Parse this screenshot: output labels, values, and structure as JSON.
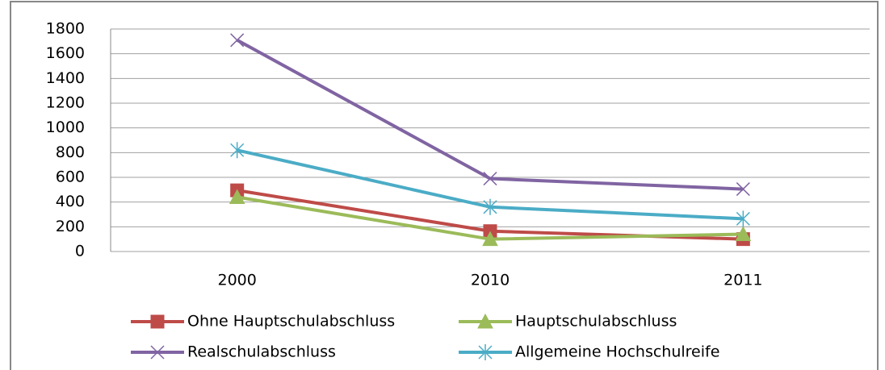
{
  "chart_data": {
    "type": "line",
    "categories": [
      "2000",
      "2010",
      "2011"
    ],
    "series": [
      {
        "name": "Ohne Hauptschulabschluss",
        "color": "#be4b48",
        "marker": "square",
        "values": [
          495,
          165,
          100
        ]
      },
      {
        "name": "Hauptschulabschluss",
        "color": "#9bbb59",
        "marker": "triangle",
        "values": [
          440,
          100,
          140
        ]
      },
      {
        "name": "Realschulabschluss",
        "color": "#8064a2",
        "marker": "x",
        "values": [
          1710,
          590,
          505
        ]
      },
      {
        "name": "Allgemeine Hochschulreife",
        "color": "#4bacc6",
        "marker": "star",
        "values": [
          820,
          360,
          265
        ]
      }
    ],
    "ylim": [
      0,
      1800
    ],
    "yticks": [
      0,
      200,
      400,
      600,
      800,
      1000,
      1200,
      1400,
      1600,
      1800
    ],
    "grid": true,
    "legend": "bottom"
  }
}
